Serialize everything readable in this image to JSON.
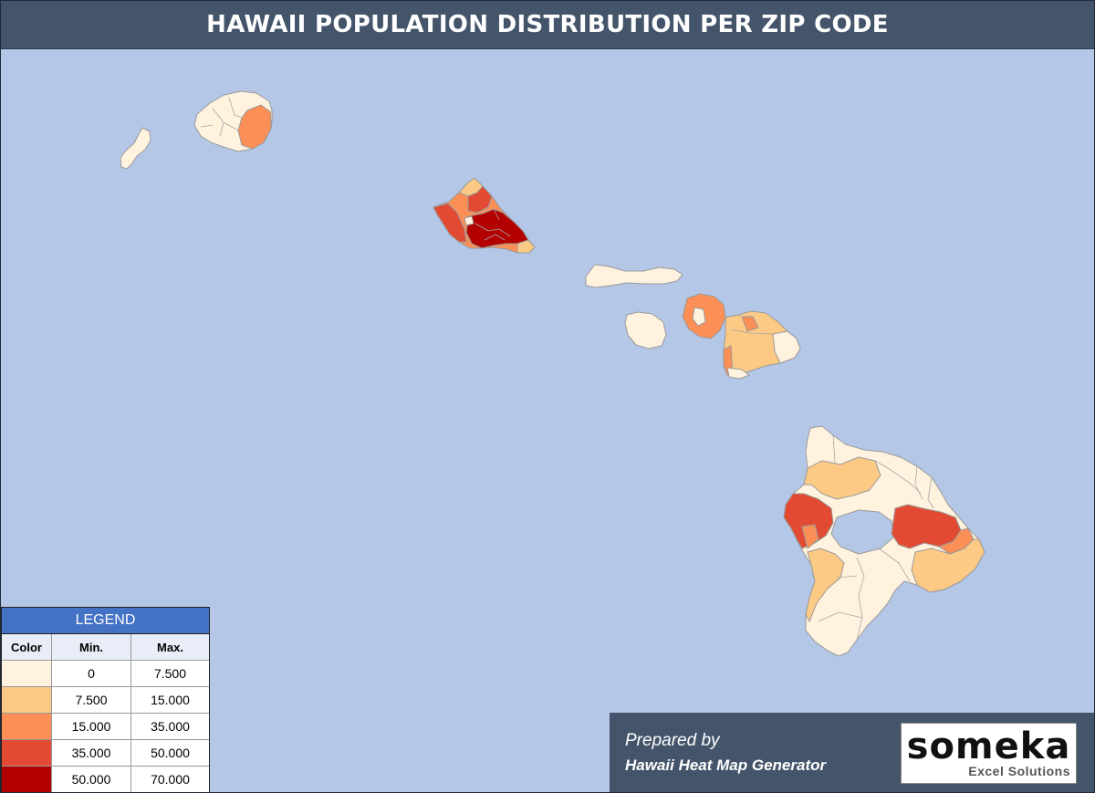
{
  "title": "HAWAII POPULATION DISTRIBUTION PER ZIP CODE",
  "legend": {
    "title": "LEGEND",
    "headers": {
      "color": "Color",
      "min": "Min.",
      "max": "Max."
    },
    "rows": [
      {
        "color": "#fff2de",
        "min": "0",
        "max": "7.500"
      },
      {
        "color": "#fcca85",
        "min": "7.500",
        "max": "15.000"
      },
      {
        "color": "#fb8f55",
        "min": "15.000",
        "max": "35.000"
      },
      {
        "color": "#e34a33",
        "min": "35.000",
        "max": "50.000"
      },
      {
        "color": "#b30000",
        "min": "50.000",
        "max": "70.000"
      }
    ]
  },
  "footer": {
    "prepared_by": "Prepared by",
    "generator": "Hawaii Heat Map Generator"
  },
  "logo": {
    "word": "someka",
    "subtitle": "Excel Solutions"
  },
  "colors": {
    "ocean": "#b4c7e7",
    "title_bar": "#44546a",
    "legend_header": "#4472c4"
  }
}
